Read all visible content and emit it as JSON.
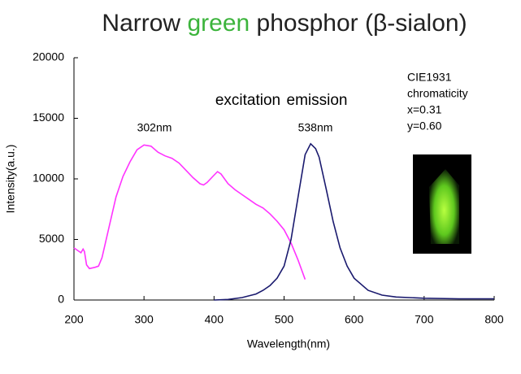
{
  "chart_data": {
    "type": "line",
    "title": [
      "Narrow",
      "green",
      "phosphor (β-sialon)"
    ],
    "title_color": "#222222",
    "title_highlight_color": "#3cb43c",
    "x_label": "Wavelength(nm)",
    "y_label": "Intensity(a.u.)",
    "xlim": [
      200,
      800
    ],
    "xticks": [
      200,
      300,
      400,
      500,
      600,
      700,
      800
    ],
    "ylim": [
      0,
      20000
    ],
    "yticks": [
      0,
      5000,
      10000,
      15000,
      20000
    ],
    "grid": false,
    "series": [
      {
        "name": "excitation",
        "color": "#ff33ff",
        "x": [
          200,
          205,
          210,
          213,
          215,
          218,
          222,
          230,
          235,
          240,
          250,
          260,
          270,
          280,
          290,
          300,
          310,
          320,
          330,
          340,
          350,
          360,
          370,
          380,
          385,
          390,
          400,
          405,
          410,
          420,
          430,
          440,
          450,
          460,
          470,
          480,
          490,
          500,
          510,
          520,
          530
        ],
        "values": [
          4300,
          4100,
          3900,
          4200,
          4000,
          2900,
          2600,
          2700,
          2800,
          3500,
          6000,
          8500,
          10200,
          11400,
          12400,
          12800,
          12700,
          12200,
          11900,
          11700,
          11300,
          10700,
          10100,
          9600,
          9500,
          9700,
          10300,
          10600,
          10400,
          9600,
          9100,
          8700,
          8300,
          7900,
          7600,
          7100,
          6500,
          5800,
          4700,
          3300,
          1700
        ]
      },
      {
        "name": "emission",
        "color": "#1a1a6e",
        "x": [
          400,
          420,
          440,
          460,
          470,
          480,
          490,
          500,
          510,
          520,
          530,
          538,
          545,
          550,
          560,
          570,
          580,
          590,
          600,
          620,
          640,
          660,
          700,
          750,
          800
        ],
        "values": [
          0,
          50,
          200,
          500,
          800,
          1200,
          1800,
          2800,
          5000,
          8500,
          12000,
          12900,
          12500,
          11800,
          9200,
          6500,
          4300,
          2800,
          1800,
          800,
          400,
          250,
          150,
          100,
          100
        ]
      }
    ],
    "annotations": [
      "302nm",
      "538nm"
    ],
    "cie_note": [
      "CIE1931",
      "chromaticity",
      "x=0.31",
      "y=0.60"
    ]
  }
}
